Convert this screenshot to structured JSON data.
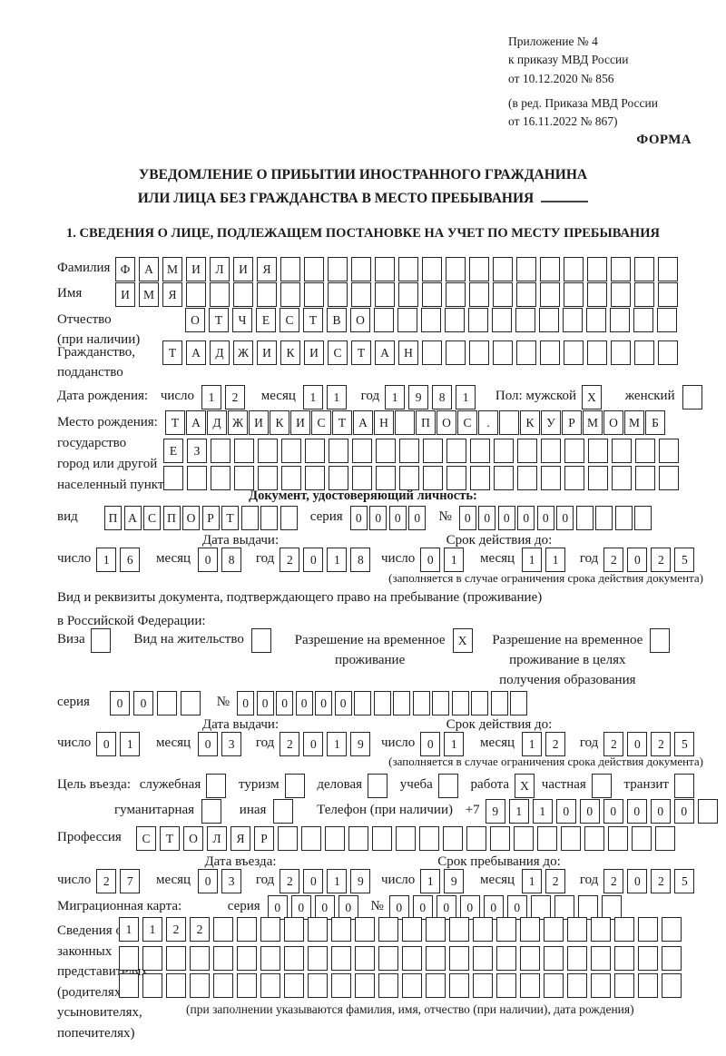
{
  "meta": {
    "appendix_lines": [
      "Приложение № 4",
      "к приказу МВД России",
      "от 10.12.2020 № 856"
    ],
    "amend_lines": [
      "(в ред. Приказа МВД России",
      "от 16.11.2022 № 867)"
    ],
    "forma": "ФОРМА"
  },
  "title": {
    "line1": "УВЕДОМЛЕНИЕ О ПРИБЫТИИ ИНОСТРАННОГО ГРАЖДАНИНА",
    "line2": "ИЛИ ЛИЦА БЕЗ ГРАЖДАНСТВА В МЕСТО ПРЕБЫВАНИЯ"
  },
  "section1_heading": "1. СВЕДЕНИЯ О ЛИЦЕ, ПОДЛЕЖАЩЕМ ПОСТАНОВКЕ НА УЧЕТ ПО МЕСТУ ПРЕБЫВАНИЯ",
  "labels": {
    "surname": "Фамилия",
    "name": "Имя",
    "patronymic1": "Отчество",
    "patronymic2": "(при наличии)",
    "citizenship1": "Гражданство,",
    "citizenship2": "подданство",
    "birthdate": "Дата рождения:",
    "day": "число",
    "month": "месяц",
    "year": "год",
    "sex_male": "Пол: мужской",
    "sex_female": "женский",
    "birthplace": "Место рождения:",
    "state": "государство",
    "city1": "город или другой",
    "city2": "населенный пункт",
    "doc_header": "Документ, удостоверяющий личность:",
    "kind": "вид",
    "series": "серия",
    "number": "№",
    "issue_date": "Дата выдачи:",
    "valid_until": "Срок действия до:",
    "valid_note": "(заполняется в случае ограничения срока действия документа)",
    "permit_line1": "Вид и реквизиты документа, подтверждающего право на пребывание (проживание)",
    "permit_line2": "в Российской Федерации:",
    "visa": "Виза",
    "residence": "Вид на жительство",
    "rvp1": "Разрешение на временное",
    "rvp2": "проживание",
    "rvpedu1": "Разрешение на временное",
    "rvpedu2": "проживание в целях",
    "rvpedu3": "получения образования",
    "purpose": "Цель въезда:",
    "official": "служебная",
    "tourism": "туризм",
    "business": "деловая",
    "study": "учеба",
    "work": "работа",
    "private": "частная",
    "transit": "транзит",
    "humanitarian": "гуманитарная",
    "other": "иная",
    "phone": "Телефон (при наличии)",
    "phone_prefix": "+7",
    "profession": "Профессия",
    "entry_date": "Дата въезда:",
    "stay_until": "Срок пребывания до:",
    "migration_card": "Миграционная карта:",
    "rep1": "Сведения о",
    "rep2": "законных",
    "rep3": "представителях",
    "rep4": "(родителях,",
    "rep5": "усыновителях,",
    "rep6": "попечителях)",
    "rep_note": "(при заполнении указываются фамилия, имя, отчество (при наличии), дата рождения)"
  },
  "cells": {
    "surname": {
      "len": 24,
      "text": "ФАМИЛИЯ"
    },
    "name": {
      "len": 24,
      "text": "ИМЯ"
    },
    "patronymic": {
      "len": 21,
      "text": "ОТЧЕСТВО"
    },
    "citizenship": {
      "len": 22,
      "text": "ТАДЖИКИСТАН"
    },
    "birth_day": {
      "len": 2,
      "text": "12"
    },
    "birth_month": {
      "len": 2,
      "text": "11"
    },
    "birth_year": {
      "len": 4,
      "text": "1981"
    },
    "male": {
      "len": 1,
      "text": "X"
    },
    "female": {
      "len": 1,
      "text": ""
    },
    "birthplace1": {
      "len": 24,
      "text": "ТАДЖИКИСТАН ПОС. КУРМОМБ"
    },
    "birthplace2": {
      "len": 22,
      "text": "ЕЗ"
    },
    "birthplace3": {
      "len": 22,
      "text": ""
    },
    "doc_kind": {
      "len": 10,
      "text": "ПАСПОРТ"
    },
    "doc_series": {
      "len": 4,
      "text": "0000"
    },
    "doc_number": {
      "len": 10,
      "text": "000000"
    },
    "doc_issue_day": {
      "len": 2,
      "text": "16"
    },
    "doc_issue_month": {
      "len": 2,
      "text": "08"
    },
    "doc_issue_year": {
      "len": 4,
      "text": "2018"
    },
    "doc_valid_day": {
      "len": 2,
      "text": "01"
    },
    "doc_valid_month": {
      "len": 2,
      "text": "11"
    },
    "doc_valid_year": {
      "len": 4,
      "text": "2025"
    },
    "visa_cb": {
      "len": 1,
      "text": ""
    },
    "residence_cb": {
      "len": 1,
      "text": ""
    },
    "rvp_cb": {
      "len": 1,
      "text": "X"
    },
    "rvp_edu_cb": {
      "len": 1,
      "text": ""
    },
    "permit_series": {
      "len": 4,
      "text": "00"
    },
    "permit_number": {
      "len": 15,
      "text": "000000"
    },
    "permit_issue_day": {
      "len": 2,
      "text": "01"
    },
    "permit_issue_month": {
      "len": 2,
      "text": "03"
    },
    "permit_issue_year": {
      "len": 4,
      "text": "2019"
    },
    "permit_valid_day": {
      "len": 2,
      "text": "01"
    },
    "permit_valid_month": {
      "len": 2,
      "text": "12"
    },
    "permit_valid_year": {
      "len": 4,
      "text": "2025"
    },
    "official_cb": {
      "len": 1,
      "text": ""
    },
    "tourism_cb": {
      "len": 1,
      "text": ""
    },
    "business_cb": {
      "len": 1,
      "text": ""
    },
    "study_cb": {
      "len": 1,
      "text": ""
    },
    "work_cb": {
      "len": 1,
      "text": "X"
    },
    "private_cb": {
      "len": 1,
      "text": ""
    },
    "transit_cb": {
      "len": 1,
      "text": ""
    },
    "humanitarian_cb": {
      "len": 1,
      "text": ""
    },
    "other_cb": {
      "len": 1,
      "text": ""
    },
    "phone": {
      "len": 10,
      "text": "911000000"
    },
    "profession": {
      "len": 23,
      "text": "СТОЛЯР"
    },
    "entry_day": {
      "len": 2,
      "text": "27"
    },
    "entry_month": {
      "len": 2,
      "text": "03"
    },
    "entry_year": {
      "len": 4,
      "text": "2019"
    },
    "stay_day": {
      "len": 2,
      "text": "19"
    },
    "stay_month": {
      "len": 2,
      "text": "12"
    },
    "stay_year": {
      "len": 4,
      "text": "2025"
    },
    "mig_series": {
      "len": 4,
      "text": "0000"
    },
    "mig_number": {
      "len": 10,
      "text": "000000"
    },
    "rep_row1": {
      "len": 24,
      "text": "1122"
    },
    "rep_row2": {
      "len": 24,
      "text": ""
    },
    "rep_row3": {
      "len": 24,
      "text": ""
    }
  }
}
